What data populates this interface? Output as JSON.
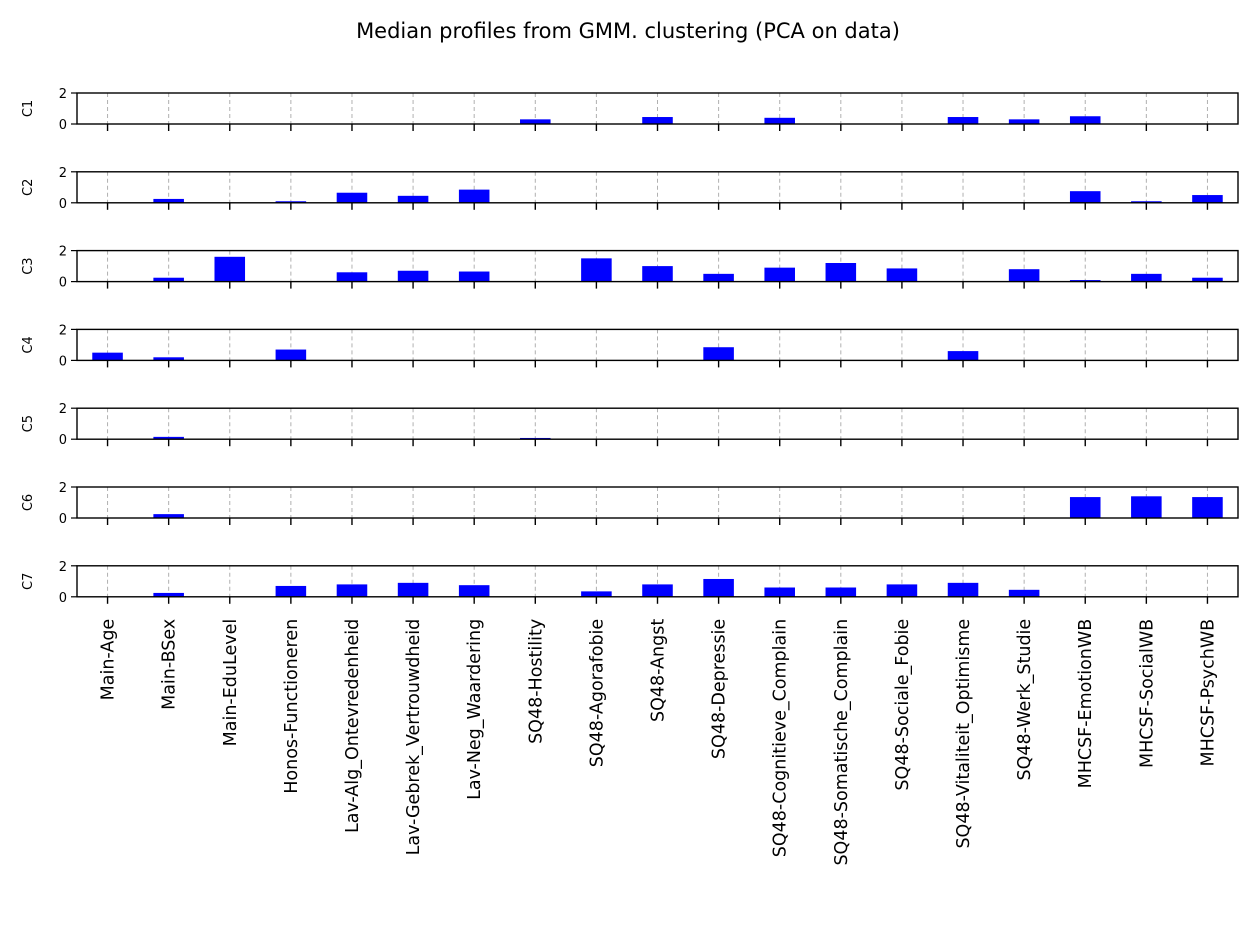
{
  "chart_data": {
    "type": "bar",
    "title": "Median profiles from GMM. clustering (PCA on data)",
    "ylim": [
      0,
      2
    ],
    "yticks": [
      0,
      2
    ],
    "grid": "x-dashed",
    "bar_color": "#0000ff",
    "categories": [
      "Main-Age",
      "Main-BSex",
      "Main-EduLevel",
      "Honos-Functioneren",
      "Lav-Alg_Ontevredenheid",
      "Lav-Gebrek_Vertrouwdheid",
      "Lav-Neg_Waardering",
      "SQ48-Hostility",
      "SQ48-Agorafobie",
      "SQ48-Angst",
      "SQ48-Depressie",
      "SQ48-Cognitieve_Complain",
      "SQ48-Somatische_Complain",
      "SQ48-Sociale_Fobie",
      "SQ48-Vitaliteit_Optimisme",
      "SQ48-Werk_Studie",
      "MHCSF-EmotionWB",
      "MHCSF-SocialWB",
      "MHCSF-PsychWB"
    ],
    "series": [
      {
        "name": "C1",
        "values": [
          0,
          0,
          0,
          0,
          0,
          0,
          0,
          0.3,
          0,
          0.45,
          0,
          0.4,
          0,
          0,
          0.45,
          0.3,
          0.5,
          0,
          0
        ]
      },
      {
        "name": "C2",
        "values": [
          0,
          0.25,
          0,
          0.1,
          0.65,
          0.45,
          0.85,
          0,
          0,
          0,
          0,
          0,
          0,
          0,
          0,
          0,
          0.75,
          0.1,
          0.5
        ]
      },
      {
        "name": "C3",
        "values": [
          0,
          0.25,
          1.6,
          0,
          0.6,
          0.7,
          0.65,
          0,
          1.5,
          1.0,
          0.5,
          0.9,
          1.2,
          0.85,
          0,
          0.8,
          0.1,
          0.5,
          0.25
        ]
      },
      {
        "name": "C4",
        "values": [
          0.5,
          0.2,
          0,
          0.7,
          0,
          0,
          0,
          0,
          0,
          0,
          0.85,
          0,
          0,
          0,
          0.6,
          0,
          0,
          0,
          0
        ]
      },
      {
        "name": "C5",
        "values": [
          0,
          0.15,
          0,
          0,
          0,
          0,
          0,
          0.08,
          0,
          0,
          0,
          0,
          0,
          0,
          0,
          0,
          0,
          0,
          0
        ]
      },
      {
        "name": "C6",
        "values": [
          0,
          0.25,
          0,
          0,
          0,
          0,
          0,
          0,
          0,
          0,
          0,
          0,
          0,
          0,
          0,
          0,
          1.35,
          1.4,
          1.35
        ]
      },
      {
        "name": "C7",
        "values": [
          0,
          0.25,
          0,
          0.7,
          0.8,
          0.9,
          0.75,
          0,
          0.35,
          0.8,
          1.15,
          0.6,
          0.6,
          0.8,
          0.9,
          0.45,
          0,
          0,
          0
        ]
      }
    ]
  }
}
